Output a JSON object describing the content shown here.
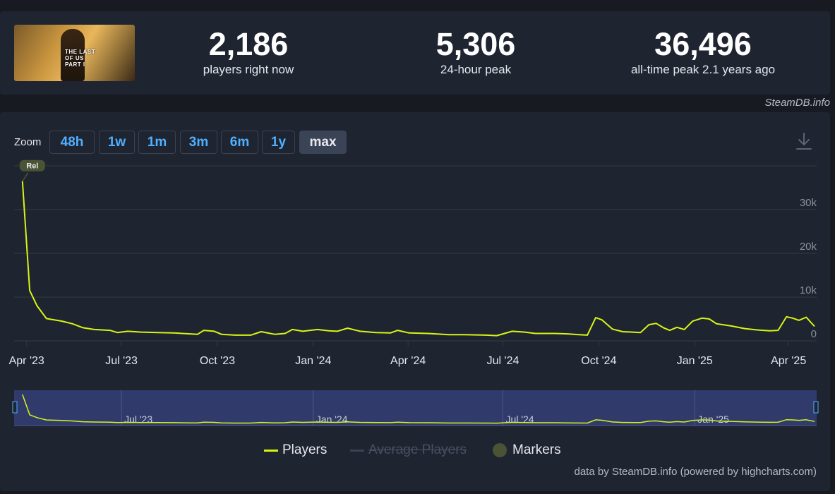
{
  "header": {
    "stats": [
      {
        "value": "2,186",
        "label": "players right now"
      },
      {
        "value": "5,306",
        "label": "24-hour peak"
      },
      {
        "value": "36,496",
        "label": "all-time peak 2.1 years ago"
      }
    ],
    "game_logo_text": "THE LAST OF US PART I",
    "credit": "SteamDB.info"
  },
  "zoom": {
    "label": "Zoom",
    "buttons": [
      "48h",
      "1w",
      "1m",
      "3m",
      "6m",
      "1y",
      "max"
    ],
    "active": "max"
  },
  "colors": {
    "players_line": "#d7f514",
    "background": "#1f2431",
    "grid": "#343a48",
    "navigator_fill": "#344077",
    "marker": "#4a5434"
  },
  "icons": [
    "download-icon"
  ],
  "legend": [
    {
      "name": "Players",
      "state": "enabled"
    },
    {
      "name": "Average Players",
      "state": "disabled"
    },
    {
      "name": "Markers",
      "state": "enabled"
    }
  ],
  "footer_credit": "data by SteamDB.info (powered by highcharts.com)",
  "marker_label": "Rel",
  "chart_data": {
    "type": "line",
    "series": [
      {
        "name": "Players",
        "points": [
          [
            "2023-03-28",
            36496
          ],
          [
            "2023-04-04",
            11500
          ],
          [
            "2023-04-11",
            8000
          ],
          [
            "2023-04-20",
            5100
          ],
          [
            "2023-05-05",
            4500
          ],
          [
            "2023-05-15",
            3900
          ],
          [
            "2023-05-25",
            3000
          ],
          [
            "2023-06-05",
            2600
          ],
          [
            "2023-06-20",
            2400
          ],
          [
            "2023-06-27",
            1900
          ],
          [
            "2023-07-07",
            2200
          ],
          [
            "2023-07-20",
            2000
          ],
          [
            "2023-08-05",
            1900
          ],
          [
            "2023-08-20",
            1800
          ],
          [
            "2023-09-05",
            1600
          ],
          [
            "2023-09-12",
            1500
          ],
          [
            "2023-09-18",
            2400
          ],
          [
            "2023-09-28",
            2200
          ],
          [
            "2023-10-05",
            1500
          ],
          [
            "2023-10-18",
            1300
          ],
          [
            "2023-11-02",
            1300
          ],
          [
            "2023-11-12",
            2100
          ],
          [
            "2023-11-25",
            1500
          ],
          [
            "2023-12-05",
            1700
          ],
          [
            "2023-12-12",
            2600
          ],
          [
            "2023-12-22",
            2200
          ],
          [
            "2024-01-05",
            2600
          ],
          [
            "2024-01-16",
            2300
          ],
          [
            "2024-01-24",
            2200
          ],
          [
            "2024-02-03",
            2900
          ],
          [
            "2024-02-15",
            2200
          ],
          [
            "2024-03-01",
            1900
          ],
          [
            "2024-03-15",
            1800
          ],
          [
            "2024-03-22",
            2400
          ],
          [
            "2024-04-02",
            1800
          ],
          [
            "2024-04-20",
            1700
          ],
          [
            "2024-05-10",
            1400
          ],
          [
            "2024-05-25",
            1400
          ],
          [
            "2024-06-15",
            1300
          ],
          [
            "2024-06-25",
            1200
          ],
          [
            "2024-07-10",
            2200
          ],
          [
            "2024-07-22",
            2000
          ],
          [
            "2024-08-01",
            1700
          ],
          [
            "2024-08-20",
            1700
          ],
          [
            "2024-09-01",
            1600
          ],
          [
            "2024-09-12",
            1400
          ],
          [
            "2024-09-20",
            1300
          ],
          [
            "2024-09-28",
            5300
          ],
          [
            "2024-10-04",
            4800
          ],
          [
            "2024-10-14",
            2700
          ],
          [
            "2024-10-24",
            2100
          ],
          [
            "2024-11-02",
            2000
          ],
          [
            "2024-11-10",
            1900
          ],
          [
            "2024-11-18",
            3700
          ],
          [
            "2024-11-25",
            4000
          ],
          [
            "2024-12-02",
            3000
          ],
          [
            "2024-12-08",
            2400
          ],
          [
            "2024-12-15",
            3100
          ],
          [
            "2024-12-22",
            2600
          ],
          [
            "2024-12-30",
            4500
          ],
          [
            "2025-01-08",
            5200
          ],
          [
            "2025-01-15",
            5000
          ],
          [
            "2025-01-22",
            3900
          ],
          [
            "2025-02-05",
            3400
          ],
          [
            "2025-02-18",
            2800
          ],
          [
            "2025-03-02",
            2500
          ],
          [
            "2025-03-14",
            2300
          ],
          [
            "2025-03-22",
            2400
          ],
          [
            "2025-03-30",
            5500
          ],
          [
            "2025-04-05",
            5200
          ],
          [
            "2025-04-11",
            4700
          ],
          [
            "2025-04-18",
            5400
          ],
          [
            "2025-04-26",
            3300
          ]
        ]
      },
      {
        "name": "Average Players",
        "visible": false,
        "points": []
      }
    ],
    "y_ticks": [
      0,
      10000,
      20000,
      30000
    ],
    "y_tick_labels": [
      "0",
      "10k",
      "20k",
      "30k"
    ],
    "ylim": [
      0,
      40000
    ],
    "x_range": [
      "2023-03-20",
      "2025-04-28"
    ],
    "x_ticks": [
      {
        "date": "2023-04-01",
        "label": "Apr '23"
      },
      {
        "date": "2023-07-01",
        "label": "Jul '23"
      },
      {
        "date": "2023-10-01",
        "label": "Oct '23"
      },
      {
        "date": "2024-01-01",
        "label": "Jan '24"
      },
      {
        "date": "2024-04-01",
        "label": "Apr '24"
      },
      {
        "date": "2024-07-01",
        "label": "Jul '24"
      },
      {
        "date": "2024-10-01",
        "label": "Oct '24"
      },
      {
        "date": "2025-01-01",
        "label": "Jan '25"
      },
      {
        "date": "2025-04-01",
        "label": "Apr '25"
      }
    ],
    "navigator_ticks": [
      {
        "date": "2023-07-01",
        "label": "Jul '23"
      },
      {
        "date": "2024-01-01",
        "label": "Jan '24"
      },
      {
        "date": "2024-07-01",
        "label": "Jul '24"
      },
      {
        "date": "2025-01-01",
        "label": "Jan '25"
      }
    ],
    "grid": true,
    "legend_position": "bottom-center"
  }
}
